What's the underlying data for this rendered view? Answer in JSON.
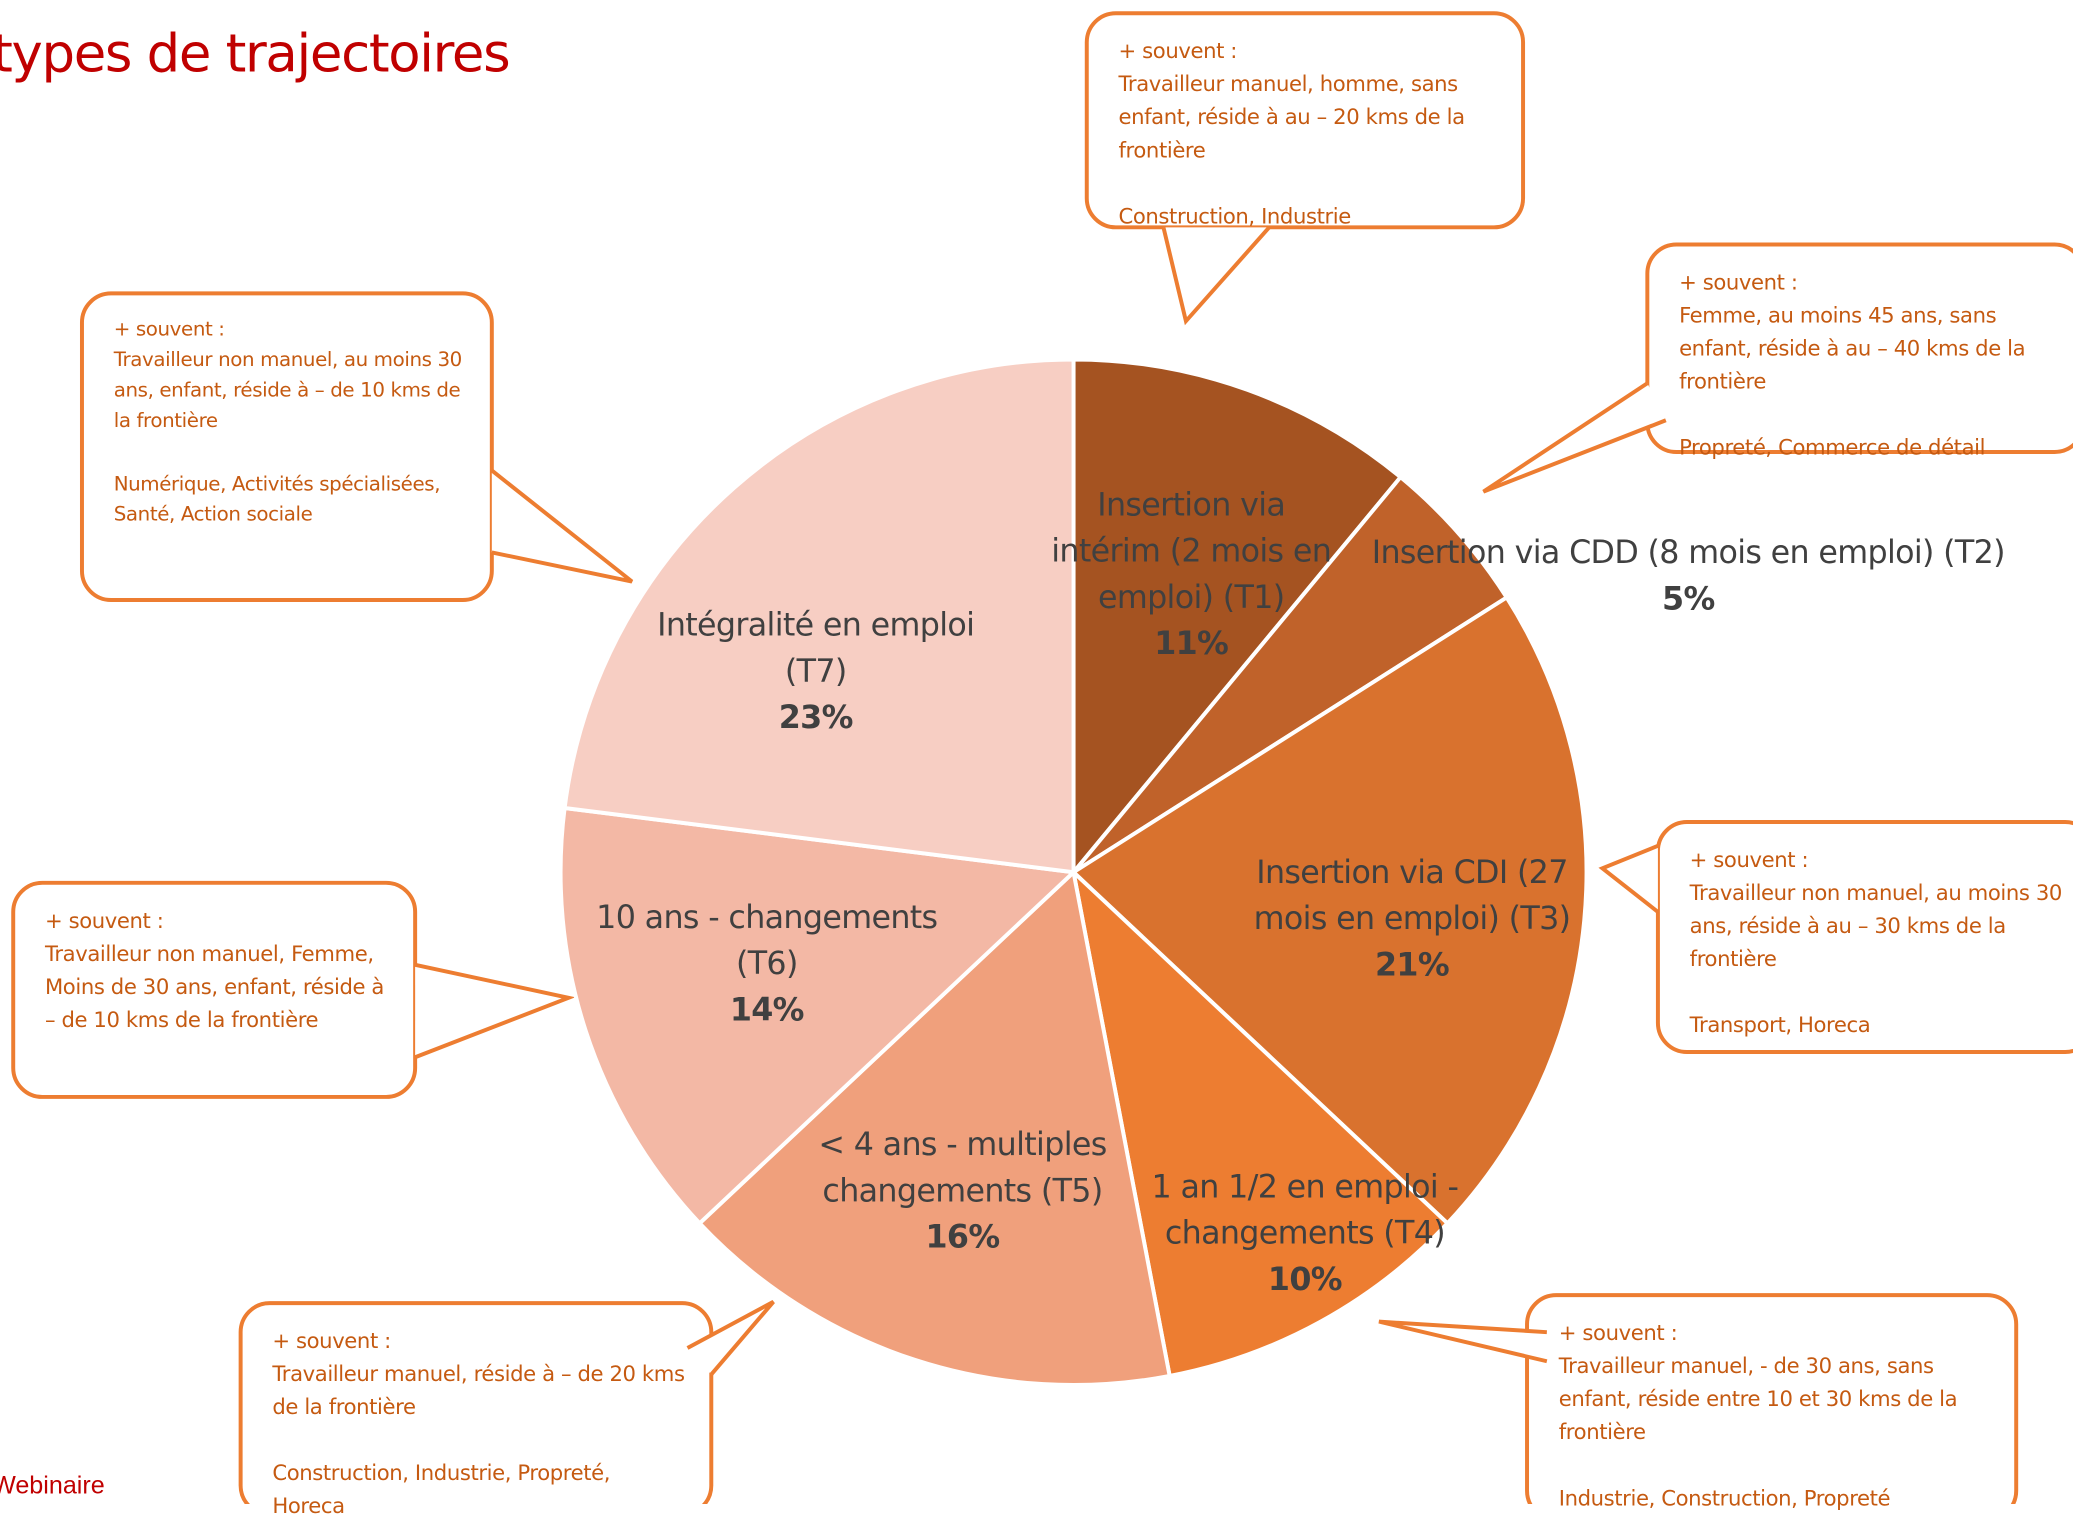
{
  "chart_data": {
    "type": "pie",
    "title": "types de trajectoires",
    "categories": [
      "Insertion via intérim (2 mois en emploi) (T1)",
      "Insertion via CDD (8 mois en emploi) (T2)",
      "Insertion via CDI (27 mois en emploi) (T3)",
      "1 an 1/2 en emploi - changements (T4)",
      "< 4 ans - multiples changements (T5)",
      "10 ans - changements (T6)",
      "Intégralité en emploi (T7)"
    ],
    "values": [
      11,
      5,
      21,
      10,
      16,
      14,
      23
    ],
    "value_labels": [
      "11%",
      "5%",
      "21%",
      "10%",
      "16%",
      "14%",
      "23%"
    ],
    "colors": [
      "#A55321",
      "#C0622A",
      "#D9722E",
      "#ED7D31",
      "#F0A07C",
      "#F3B8A5",
      "#F7CEC3"
    ],
    "annotations": [
      {
        "heading": "+ souvent :",
        "profile": "Travailleur manuel, homme, sans enfant, réside à au – 20 kms de la frontière",
        "sectors": "Construction, Industrie"
      },
      {
        "heading": "+ souvent :",
        "profile": "Femme, au moins 45 ans, sans enfant, réside à au – 40 kms de la frontière",
        "sectors": "Propreté, Commerce de détail"
      },
      {
        "heading": "+ souvent :",
        "profile": "Travailleur non manuel, au moins 30 ans, réside à au – 30 kms de la frontière",
        "sectors": "Transport, Horeca"
      },
      {
        "heading": "+ souvent :",
        "profile": "Travailleur manuel, - de 30 ans, sans enfant, réside entre 10 et 30 kms de la frontière",
        "sectors": "Industrie, Construction, Propreté"
      },
      {
        "heading": "+ souvent :",
        "profile": "Travailleur manuel, réside à – de 20 kms de la frontière",
        "sectors": "Construction, Industrie, Propreté, Horeca"
      },
      {
        "heading": "+ souvent :",
        "profile": "Travailleur non manuel, Femme, Moins de 30 ans, enfant, réside à – de 10 kms de la frontière",
        "sectors": ""
      },
      {
        "heading": "+ souvent :",
        "profile": "Travailleur non manuel, au moins 30 ans, enfant, réside à – de 10 kms de la frontière",
        "sectors": "Numérique, Activités spécialisées, Santé, Action sociale"
      }
    ],
    "footer": "Webinaire"
  }
}
